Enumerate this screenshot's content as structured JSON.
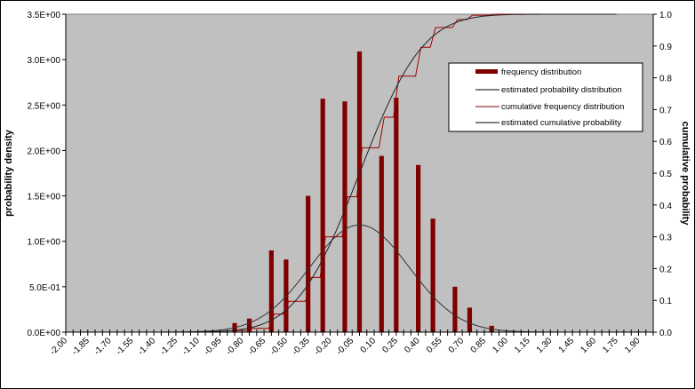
{
  "chart_data": {
    "type": "bar",
    "title": "",
    "xlabel": "",
    "ylabel": "probability density",
    "y2label": "cumulative probability",
    "xlim": [
      -2.0,
      2.0
    ],
    "ylim": [
      0,
      3.5
    ],
    "y2lim": [
      0,
      1
    ],
    "grid": false,
    "legend_position": "top-right",
    "x_tick_labels": [
      "-2.00",
      "-1.85",
      "-1.70",
      "-1.55",
      "-1.40",
      "-1.25",
      "-1.10",
      "-0.95",
      "-0.80",
      "-0.65",
      "-0.50",
      "-0.35",
      "-0.20",
      "-0.05",
      "0.10",
      "0.25",
      "0.40",
      "0.55",
      "0.70",
      "0.85",
      "1.00",
      "1.15",
      "1.30",
      "1.45",
      "1.60",
      "1.75",
      "1.90"
    ],
    "y_tick_labels": [
      "0.0E+00",
      "5.0E-01",
      "1.0E+00",
      "1.5E+00",
      "2.0E+00",
      "2.5E+00",
      "3.0E+00",
      "3.5E+00"
    ],
    "y2_tick_labels": [
      "0.0",
      "0.1",
      "0.2",
      "0.3",
      "0.4",
      "0.5",
      "0.6",
      "0.7",
      "0.8",
      "0.9",
      "1.0"
    ],
    "series": [
      {
        "name": "frequency distribution",
        "type": "bar",
        "color": "#800000",
        "x": [
          -0.85,
          -0.75,
          -0.6,
          -0.5,
          -0.35,
          -0.25,
          -0.1,
          0.0,
          0.15,
          0.25,
          0.4,
          0.5,
          0.65,
          0.75,
          0.9
        ],
        "values": [
          0.1,
          0.15,
          0.9,
          0.8,
          1.5,
          2.57,
          2.54,
          3.09,
          1.94,
          2.58,
          1.84,
          1.25,
          0.5,
          0.27,
          0.07
        ]
      },
      {
        "name": "estimated probability distribution",
        "type": "line",
        "axis": "left",
        "color": "#333333",
        "distribution": "normal",
        "mean": 0.0,
        "sd": 0.338
      },
      {
        "name": "cumulative frequency distribution",
        "type": "step-line",
        "axis": "right",
        "color": "#a00000",
        "x": [
          -0.85,
          -0.75,
          -0.6,
          -0.5,
          -0.35,
          -0.25,
          -0.1,
          0.0,
          0.15,
          0.25,
          0.4,
          0.5,
          0.65,
          0.75,
          0.9
        ],
        "values": [
          0.005,
          0.012,
          0.057,
          0.097,
          0.172,
          0.3,
          0.426,
          0.58,
          0.676,
          0.805,
          0.896,
          0.958,
          0.983,
          0.997,
          1.0
        ]
      },
      {
        "name": "estimated cumulative probability",
        "type": "line",
        "axis": "right",
        "color": "#222222",
        "distribution": "normal-cdf",
        "mean": 0.0,
        "sd": 0.338
      }
    ]
  }
}
